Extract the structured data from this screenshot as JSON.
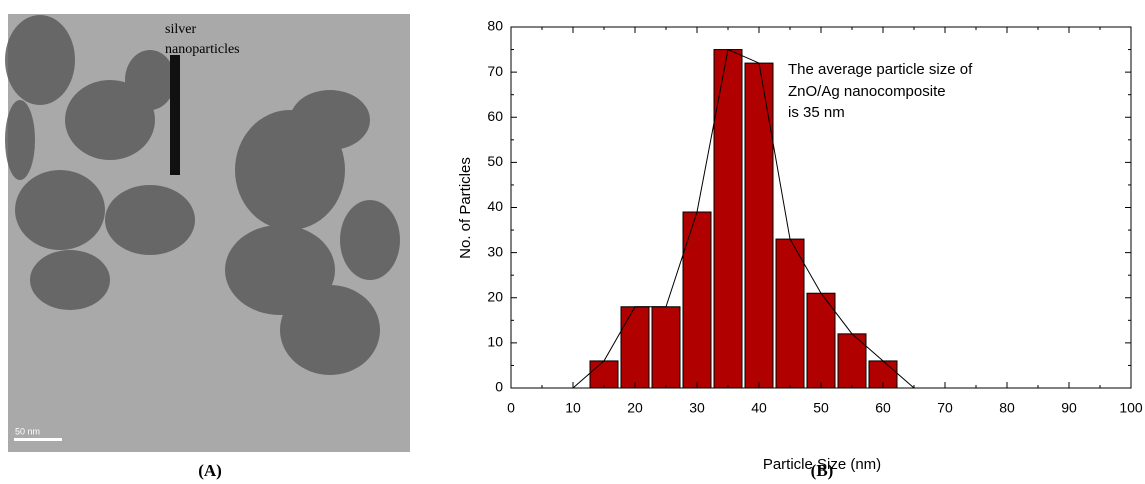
{
  "image": {
    "annotation": [
      "silver",
      "nanoparticles"
    ],
    "scale_bar": "50 nm"
  },
  "captions": [
    "(A)",
    "(B)"
  ],
  "chart_data": {
    "type": "histogram",
    "xlabel": "Particle Size (nm)",
    "ylabel": "No. of Particles",
    "annotation": [
      "The average particle size of",
      "ZnO/Ag nanocomposite",
      "is 35 nm"
    ],
    "bins": [
      12.5,
      17.5,
      22.5,
      27.5,
      32.5,
      37.5,
      42.5,
      47.5,
      52.5,
      57.5,
      62.5
    ],
    "values": [
      6,
      18,
      18,
      39,
      75,
      72,
      33,
      21,
      12,
      6
    ],
    "color": "#b00000",
    "line": {
      "x": [
        10,
        15,
        20,
        25,
        30,
        35,
        40,
        45,
        50,
        55,
        60,
        65
      ],
      "values": [
        0,
        6,
        18,
        18,
        39,
        75,
        72,
        33,
        21,
        12,
        6,
        0
      ],
      "color": "#000000"
    },
    "xlim": [
      0,
      100
    ],
    "ylim": [
      0,
      80
    ],
    "xticks": [
      0,
      10,
      20,
      30,
      40,
      50,
      60,
      70,
      80,
      90,
      100
    ],
    "yticks": [
      0,
      10,
      20,
      30,
      40,
      50,
      60,
      70,
      80
    ]
  }
}
